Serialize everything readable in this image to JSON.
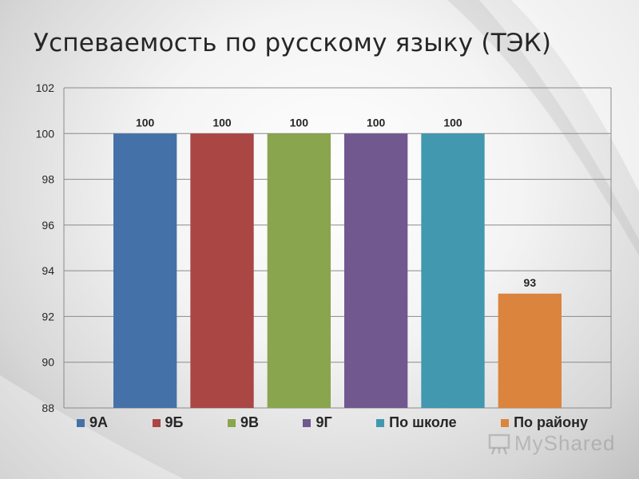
{
  "slide": {
    "title": "Успеваемость по русскому языку (ТЭК)"
  },
  "chart_data": {
    "type": "bar",
    "title": "",
    "xlabel": "",
    "ylabel": "",
    "ylim": [
      88,
      102
    ],
    "yticks": [
      88,
      90,
      92,
      94,
      96,
      98,
      100,
      102
    ],
    "grid": true,
    "legend_position": "bottom",
    "series": [
      {
        "name": "9А",
        "value": 100,
        "label": "100",
        "color": "#4472A8"
      },
      {
        "name": "9Б",
        "value": 100,
        "label": "100",
        "color": "#AA4643"
      },
      {
        "name": "9В",
        "value": 100,
        "label": "100",
        "color": "#89A54E"
      },
      {
        "name": "9Г",
        "value": 100,
        "label": "100",
        "color": "#71588F"
      },
      {
        "name": "По школе",
        "value": 100,
        "label": "100",
        "color": "#4198AF"
      },
      {
        "name": "По району",
        "value": 93,
        "label": "93",
        "color": "#DB843D"
      }
    ]
  },
  "watermark": {
    "text": "MyShared",
    "icon": "presentation-board-icon"
  }
}
